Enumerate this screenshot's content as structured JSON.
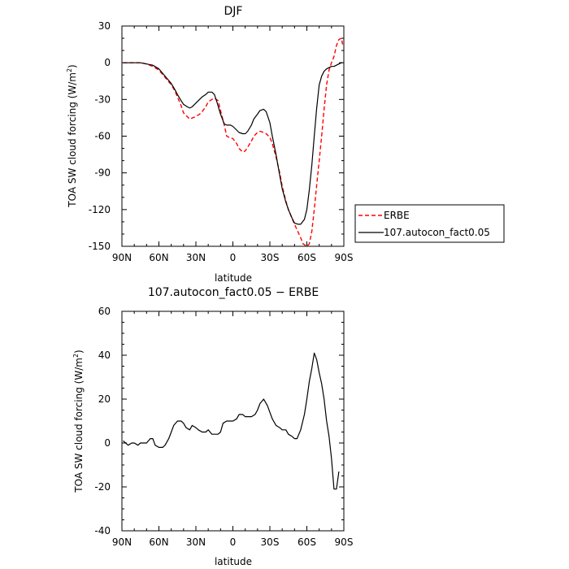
{
  "chart_data": [
    {
      "type": "line",
      "title": "DJF",
      "xlabel": "latitude",
      "ylabel_main": "TOA SW cloud forcing (W/m",
      "ylabel_sup": "2",
      "ylabel_close": ")",
      "xlim": [
        90,
        -90
      ],
      "ylim": [
        -150,
        30
      ],
      "x_ticks": [
        90,
        60,
        30,
        0,
        -30,
        -60,
        -90
      ],
      "x_tick_labels": [
        "90N",
        "60N",
        "30N",
        "0",
        "30S",
        "60S",
        "90S"
      ],
      "y_ticks": [
        -150,
        -120,
        -90,
        -60,
        -30,
        0,
        30
      ],
      "y_tick_labels": [
        "-150",
        "-120",
        "-90",
        "-60",
        "-30",
        "0",
        "30"
      ],
      "legend_position": "right of plot",
      "grid": false,
      "series": [
        {
          "name": "ERBE",
          "color": "#ff0000",
          "dash": "dashed",
          "x": [
            89,
            85,
            80,
            75,
            70,
            65,
            60,
            55,
            50,
            47,
            45,
            42,
            40,
            35,
            30,
            27,
            25,
            22,
            20,
            17,
            15,
            12,
            10,
            7,
            5,
            3,
            0,
            -3,
            -5,
            -8,
            -10,
            -12,
            -15,
            -17,
            -20,
            -22,
            -25,
            -27,
            -30,
            -32,
            -35,
            -38,
            -40,
            -43,
            -45,
            -50,
            -55,
            -57,
            -60,
            -62,
            -64,
            -66,
            -68,
            -70,
            -72,
            -74,
            -76,
            -78,
            -80,
            -82,
            -84,
            -86,
            -88,
            -89
          ],
          "y": [
            0,
            0,
            0,
            0,
            -1,
            -3,
            -6,
            -12,
            -18,
            -23,
            -28,
            -35,
            -41,
            -46,
            -44,
            -42,
            -40,
            -36,
            -32,
            -30,
            -29,
            -31,
            -39,
            -51,
            -60,
            -61,
            -62,
            -66,
            -70,
            -73,
            -72,
            -69,
            -64,
            -60,
            -57,
            -56,
            -57,
            -58,
            -61,
            -66,
            -77,
            -90,
            -101,
            -113,
            -120,
            -132,
            -143,
            -148,
            -150,
            -148,
            -138,
            -120,
            -100,
            -80,
            -60,
            -38,
            -18,
            -6,
            0,
            5,
            14,
            19,
            20,
            15
          ]
        },
        {
          "name": "107.autocon_fact0.05",
          "color": "#000000",
          "dash": "solid",
          "x": [
            89,
            85,
            80,
            75,
            70,
            65,
            60,
            55,
            50,
            47,
            45,
            42,
            40,
            37,
            35,
            33,
            30,
            28,
            25,
            22,
            20,
            17,
            15,
            13,
            10,
            7,
            5,
            2,
            0,
            -3,
            -5,
            -8,
            -10,
            -12,
            -15,
            -17,
            -20,
            -22,
            -25,
            -27,
            -30,
            -32,
            -35,
            -38,
            -40,
            -43,
            -45,
            -48,
            -50,
            -53,
            -55,
            -58,
            -60,
            -62,
            -64,
            -66,
            -68,
            -70,
            -72,
            -74,
            -76,
            -78,
            -80,
            -82,
            -84,
            -86,
            -88,
            -89
          ],
          "y": [
            0,
            0,
            0,
            0,
            -1,
            -2,
            -5,
            -11,
            -17,
            -22,
            -26,
            -31,
            -34,
            -36,
            -37,
            -36,
            -33,
            -31,
            -28,
            -26,
            -24,
            -24,
            -26,
            -32,
            -42,
            -50,
            -51,
            -51,
            -52,
            -55,
            -57,
            -58,
            -58,
            -56,
            -51,
            -46,
            -42,
            -39,
            -38,
            -40,
            -49,
            -60,
            -75,
            -92,
            -103,
            -114,
            -120,
            -127,
            -131,
            -132,
            -132,
            -128,
            -120,
            -104,
            -84,
            -60,
            -37,
            -18,
            -11,
            -7,
            -5,
            -4,
            -3,
            -3,
            -2,
            -1,
            0,
            0
          ]
        }
      ]
    },
    {
      "type": "line",
      "title": "107.autocon_fact0.05 − ERBE",
      "xlabel": "latitude",
      "ylabel_main": "TOA SW cloud forcing (W/m",
      "ylabel_sup": "2",
      "ylabel_close": ")",
      "xlim": [
        90,
        -90
      ],
      "ylim": [
        -40,
        60
      ],
      "x_ticks": [
        90,
        60,
        30,
        0,
        -30,
        -60,
        -90
      ],
      "x_tick_labels": [
        "90N",
        "60N",
        "30N",
        "0",
        "30S",
        "60S",
        "90S"
      ],
      "y_ticks": [
        -40,
        -20,
        0,
        20,
        40,
        60
      ],
      "y_tick_labels": [
        "-40",
        "-20",
        "0",
        "20",
        "40",
        "60"
      ],
      "grid": false,
      "series": [
        {
          "name": "",
          "color": "#000000",
          "dash": "solid",
          "x": [
            89,
            87,
            85,
            82,
            80,
            77,
            75,
            72,
            70,
            67,
            65,
            63,
            60,
            57,
            55,
            52,
            50,
            48,
            45,
            42,
            40,
            38,
            35,
            33,
            30,
            28,
            25,
            22,
            20,
            17,
            15,
            12,
            10,
            8,
            5,
            3,
            0,
            -3,
            -5,
            -8,
            -10,
            -12,
            -15,
            -18,
            -20,
            -22,
            -25,
            -28,
            -30,
            -32,
            -35,
            -38,
            -40,
            -43,
            -45,
            -48,
            -50,
            -52,
            -55,
            -58,
            -60,
            -62,
            -64,
            -66,
            -68,
            -70,
            -72,
            -74,
            -76,
            -78,
            -80,
            -82,
            -84,
            -86
          ],
          "y": [
            1,
            0,
            -1,
            0,
            0,
            -1,
            0,
            0,
            0,
            2,
            2,
            -1,
            -2,
            -2,
            -1,
            2,
            5,
            8,
            10,
            10,
            9,
            7,
            6,
            8,
            7,
            6,
            5,
            5,
            6,
            4,
            4,
            4,
            5,
            9,
            10,
            10,
            10,
            11,
            13,
            13,
            12,
            12,
            12,
            13,
            15,
            18,
            20,
            17,
            14,
            11,
            8,
            7,
            6,
            6,
            4,
            3,
            2,
            2,
            6,
            13,
            20,
            28,
            34,
            41,
            38,
            32,
            27,
            20,
            10,
            3,
            -7,
            -21,
            -21,
            -13
          ]
        }
      ]
    }
  ]
}
